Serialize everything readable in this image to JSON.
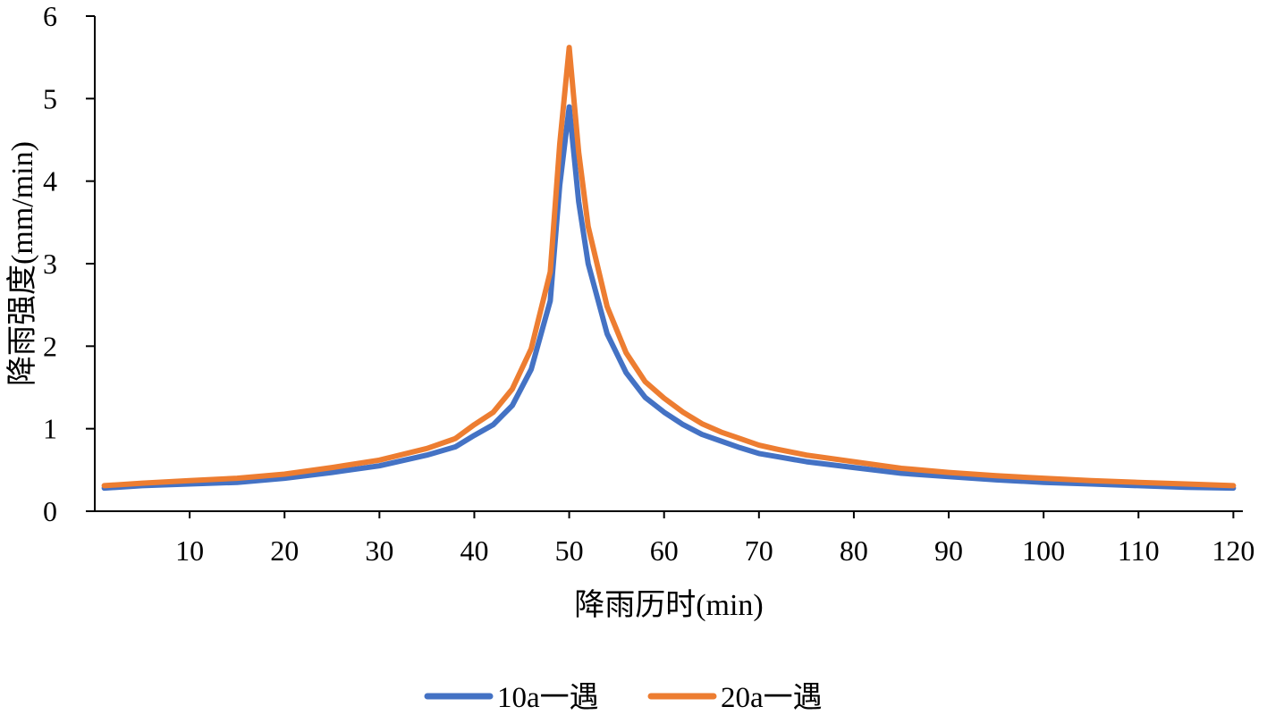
{
  "chart_data": {
    "type": "line",
    "title": "",
    "xlabel": "降雨历时(min)",
    "ylabel": "降雨强度(mm/min)",
    "xlim": [
      0,
      121
    ],
    "ylim": [
      0,
      6
    ],
    "grid": false,
    "legend_position": "bottom",
    "x_ticks": [
      10,
      20,
      30,
      40,
      50,
      60,
      70,
      80,
      90,
      100,
      110,
      120
    ],
    "y_ticks": [
      0,
      1,
      2,
      3,
      4,
      5,
      6
    ],
    "x_tick_labels": [
      "10",
      "20",
      "30",
      "40",
      "50",
      "60",
      "70",
      "80",
      "90",
      "100",
      "110",
      "120"
    ],
    "y_tick_labels": [
      "0",
      "1",
      "2",
      "3",
      "4",
      "5",
      "6"
    ],
    "series": [
      {
        "name": "10a一遇",
        "color": "#4472C4",
        "x": [
          1,
          5,
          10,
          15,
          20,
          25,
          30,
          35,
          38,
          40,
          42,
          44,
          46,
          48,
          49,
          50,
          51,
          52,
          54,
          56,
          58,
          60,
          62,
          64,
          66,
          68,
          70,
          72,
          75,
          80,
          85,
          90,
          95,
          100,
          105,
          110,
          115,
          120
        ],
        "values": [
          0.28,
          0.31,
          0.33,
          0.35,
          0.4,
          0.47,
          0.55,
          0.68,
          0.78,
          0.92,
          1.05,
          1.28,
          1.72,
          2.55,
          3.95,
          4.9,
          3.75,
          3.0,
          2.15,
          1.68,
          1.38,
          1.2,
          1.05,
          0.93,
          0.85,
          0.77,
          0.7,
          0.66,
          0.6,
          0.53,
          0.46,
          0.42,
          0.38,
          0.35,
          0.33,
          0.31,
          0.29,
          0.28
        ]
      },
      {
        "name": "20a一遇",
        "color": "#ED7D31",
        "x": [
          1,
          5,
          10,
          15,
          20,
          25,
          30,
          35,
          38,
          40,
          42,
          44,
          46,
          48,
          49,
          50,
          51,
          52,
          54,
          56,
          58,
          60,
          62,
          64,
          66,
          68,
          70,
          72,
          75,
          80,
          85,
          90,
          95,
          100,
          105,
          110,
          115,
          120
        ],
        "values": [
          0.31,
          0.34,
          0.37,
          0.4,
          0.45,
          0.53,
          0.62,
          0.76,
          0.88,
          1.05,
          1.2,
          1.48,
          1.97,
          2.9,
          4.45,
          5.62,
          4.35,
          3.45,
          2.48,
          1.92,
          1.57,
          1.37,
          1.2,
          1.06,
          0.96,
          0.88,
          0.8,
          0.75,
          0.68,
          0.6,
          0.52,
          0.47,
          0.43,
          0.4,
          0.37,
          0.35,
          0.33,
          0.31
        ]
      }
    ]
  }
}
